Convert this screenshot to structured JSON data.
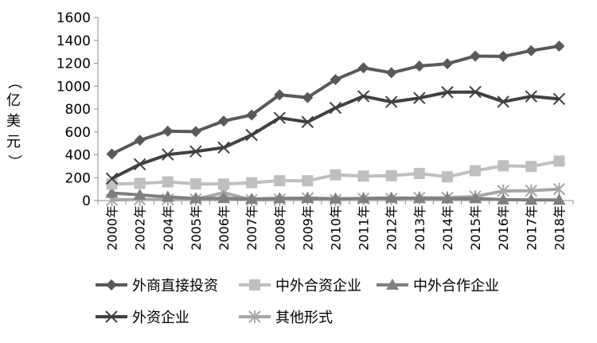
{
  "chart_data": {
    "type": "line",
    "title": "",
    "xlabel": "",
    "ylabel": "（亿美元）",
    "ylim": [
      0,
      1600
    ],
    "ytick_step": 200,
    "grid": false,
    "legend_position": "bottom",
    "categories": [
      "2000年",
      "2002年",
      "2004年",
      "2005年",
      "2006年",
      "2007年",
      "2008年",
      "2009年",
      "2010年",
      "2011年",
      "2012年",
      "2013年",
      "2014年",
      "2015年",
      "2016年",
      "2017年",
      "2018年"
    ],
    "series": [
      {
        "name": "外商直接投资",
        "color": "#595959",
        "marker": "diamond",
        "values": [
          407,
          527,
          606,
          603,
          695,
          748,
          924,
          900,
          1057,
          1160,
          1117,
          1176,
          1196,
          1263,
          1260,
          1310,
          1350
        ]
      },
      {
        "name": "中外合资企业",
        "color": "#bfbfbf",
        "marker": "square",
        "values": [
          144,
          150,
          163,
          146,
          144,
          156,
          174,
          173,
          225,
          214,
          217,
          237,
          207,
          261,
          304,
          298,
          345
        ]
      },
      {
        "name": "中外合作企业",
        "color": "#7f7f7f",
        "marker": "triangle",
        "values": [
          66,
          50,
          31,
          18,
          19,
          14,
          19,
          21,
          16,
          18,
          23,
          19,
          17,
          18,
          8,
          5,
          5
        ]
      },
      {
        "name": "外资企业",
        "color": "#404040",
        "marker": "x",
        "values": [
          192,
          317,
          402,
          429,
          463,
          573,
          723,
          686,
          810,
          912,
          862,
          896,
          947,
          949,
          864,
          911,
          888
        ]
      },
      {
        "name": "其他形式",
        "color": "#a6a6a6",
        "marker": "star",
        "values": [
          5,
          10,
          10,
          10,
          69,
          5,
          8,
          20,
          6,
          16,
          15,
          24,
          25,
          35,
          84,
          86,
          100
        ]
      }
    ]
  }
}
